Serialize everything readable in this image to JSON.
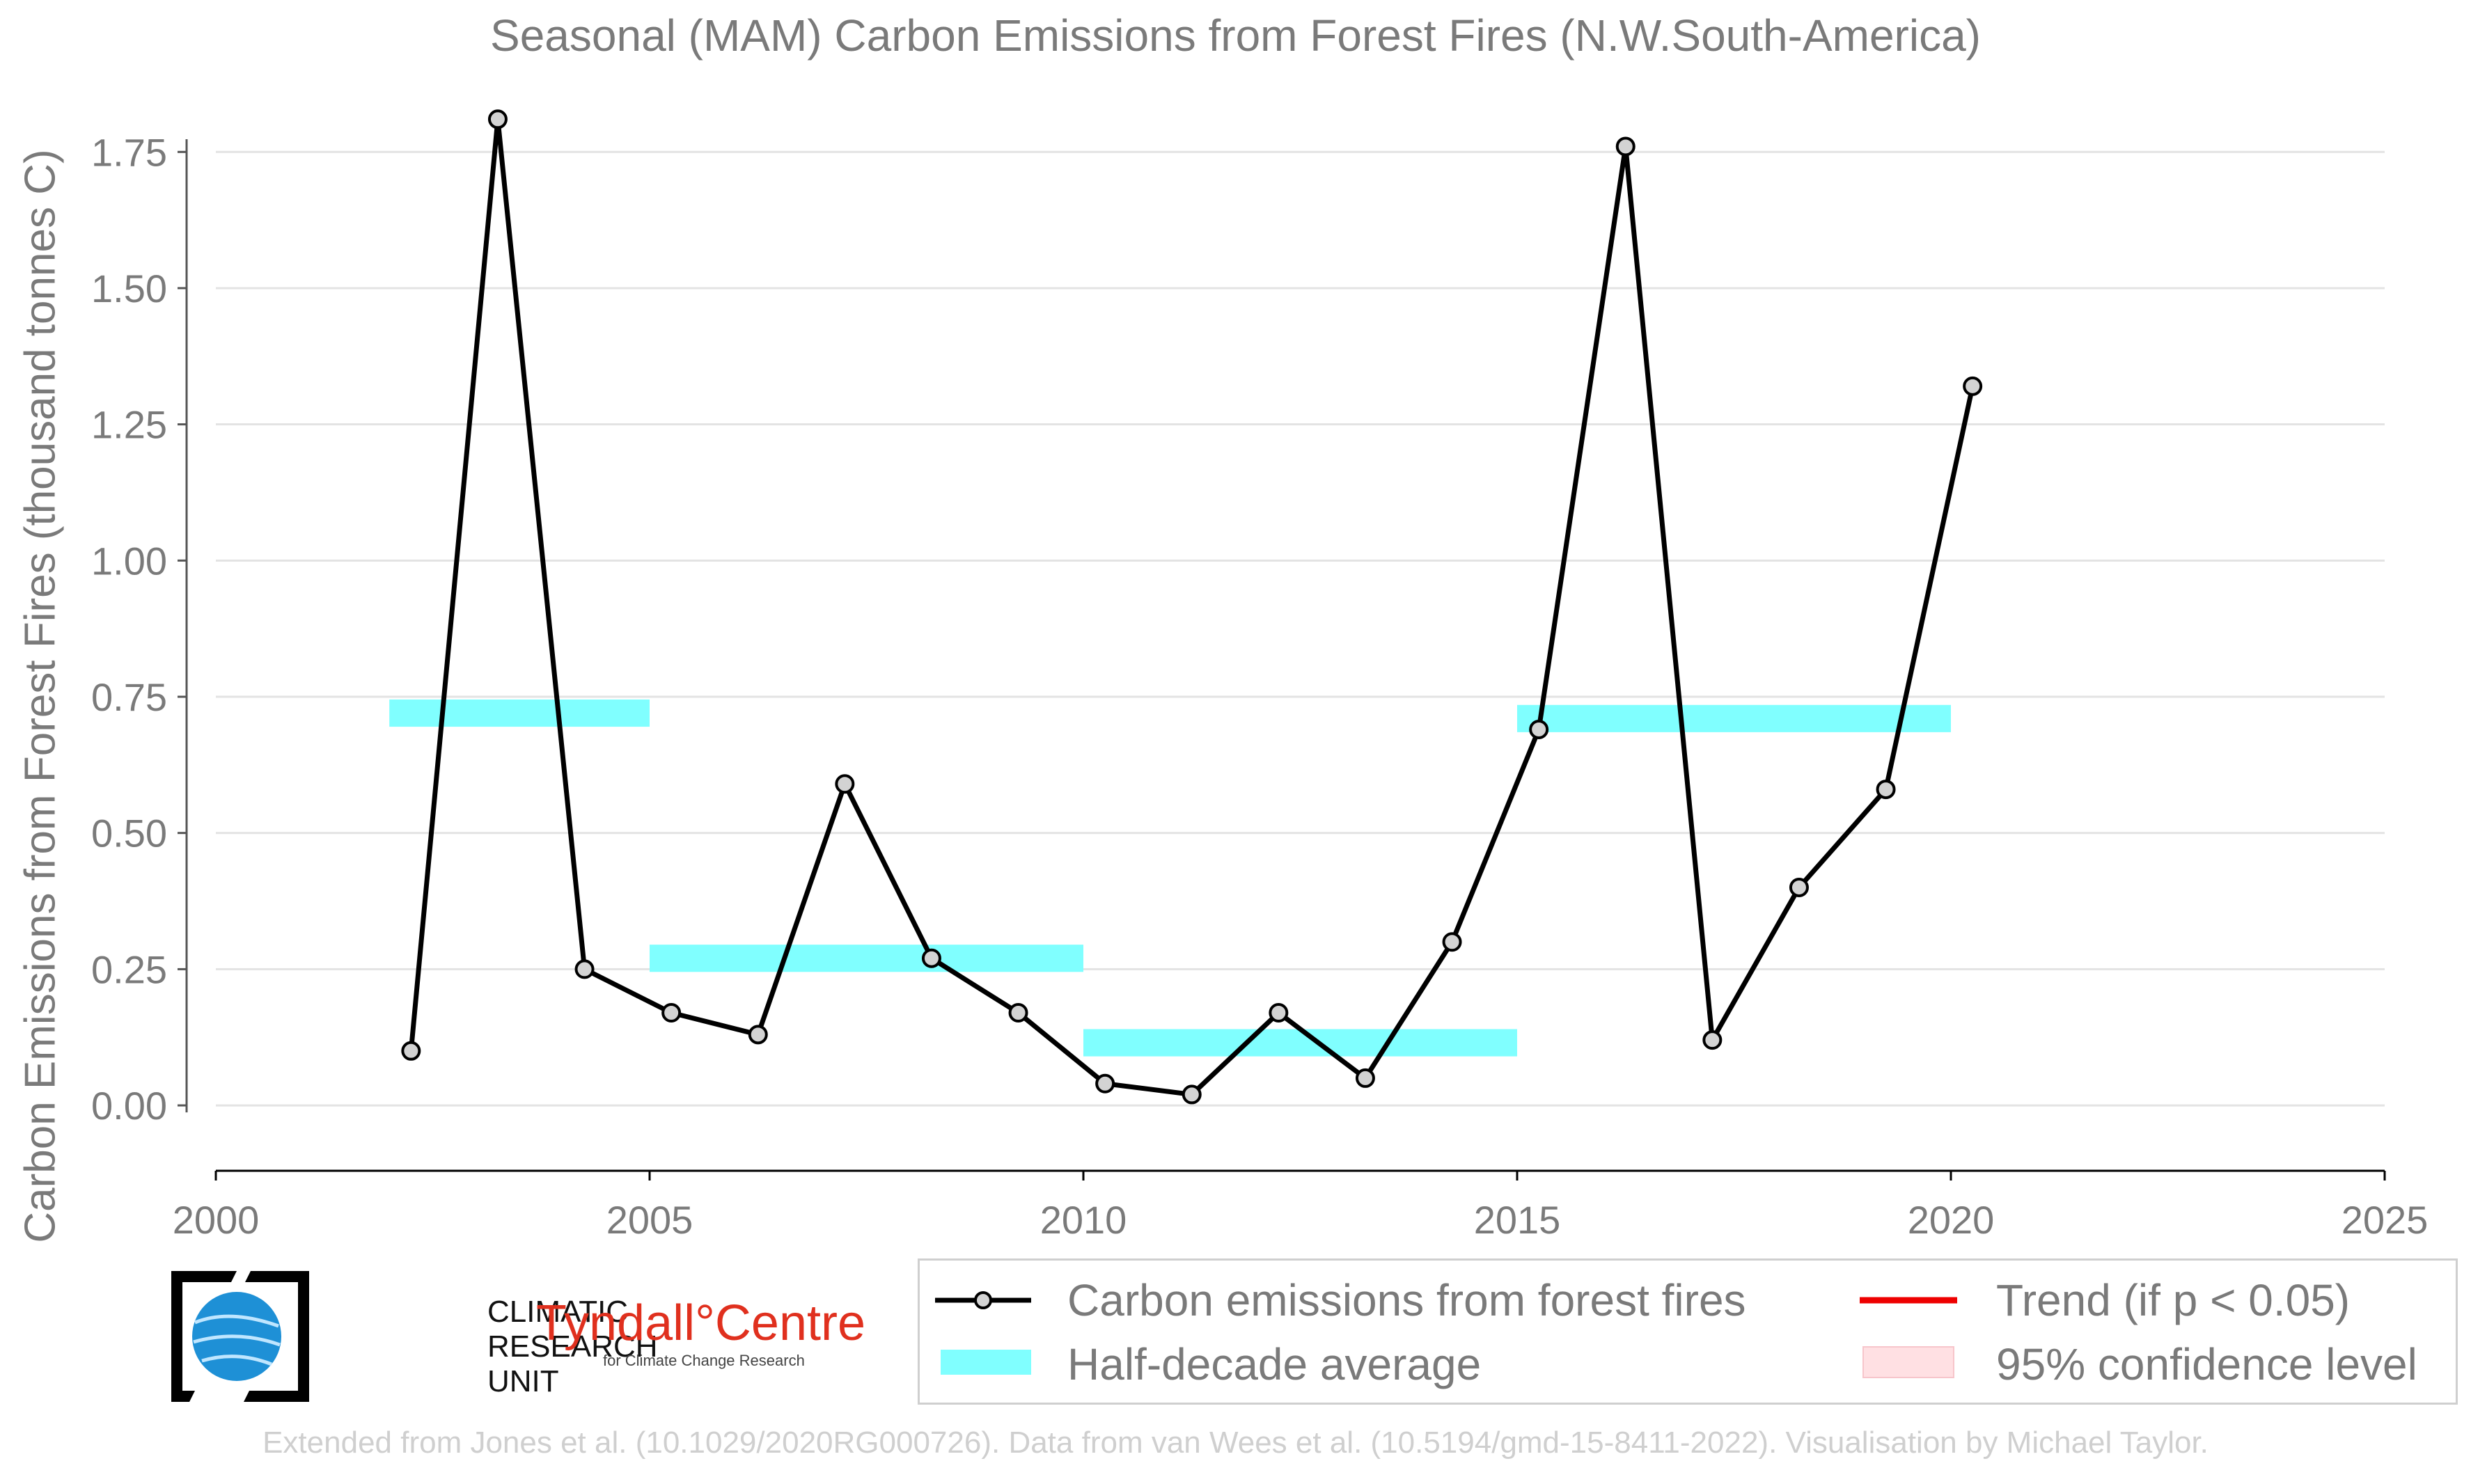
{
  "title": "Seasonal (MAM) Carbon Emissions from Forest Fires (N.W.South-America)",
  "chart_data": {
    "type": "line",
    "ylabel": "Carbon Emissions from Forest Fires (thousand tonnes C)",
    "xlabel": "",
    "xlim": [
      2000,
      2025
    ],
    "ylim": [
      -0.12,
      1.85
    ],
    "x_ticks": [
      "2000",
      "2005",
      "2010",
      "2015",
      "2020",
      "2025"
    ],
    "y_ticks": [
      "0.00",
      "0.25",
      "0.50",
      "0.75",
      "1.00",
      "1.25",
      "1.50",
      "1.75"
    ],
    "grid": true,
    "series": [
      {
        "name": "Carbon emissions from forest fires",
        "color": "#000000",
        "marker_fill": "#d3d3d3",
        "x": [
          2002.25,
          2003.25,
          2004.25,
          2005.25,
          2006.25,
          2007.25,
          2008.25,
          2009.25,
          2010.25,
          2011.25,
          2012.25,
          2013.25,
          2014.25,
          2015.25,
          2016.25,
          2017.25,
          2018.25,
          2019.25,
          2020.25
        ],
        "values": [
          0.1,
          1.81,
          0.25,
          0.17,
          0.13,
          0.59,
          0.27,
          0.17,
          0.04,
          0.02,
          0.17,
          0.05,
          0.3,
          0.69,
          1.76,
          0.12,
          0.4,
          0.58,
          1.32
        ]
      }
    ],
    "half_decade_averages": [
      {
        "start": 2002,
        "end": 2005,
        "value": 0.72
      },
      {
        "start": 2005,
        "end": 2010,
        "value": 0.27
      },
      {
        "start": 2010,
        "end": 2015,
        "value": 0.115
      },
      {
        "start": 2015,
        "end": 2020,
        "value": 0.71
      }
    ],
    "half_decade_color": "#80ffff",
    "legend_position": "bottom-right",
    "legend": [
      {
        "label": "Carbon emissions from forest fires",
        "kind": "line-marker",
        "color": "#000000"
      },
      {
        "label": "Trend (if p < 0.05)",
        "kind": "line",
        "color": "#ee0000"
      },
      {
        "label": "Half-decade average",
        "kind": "band",
        "color": "#80ffff"
      },
      {
        "label": "95% confidence level",
        "kind": "patch",
        "color": "#ffe0e3"
      }
    ]
  },
  "logos": {
    "cru_lines": [
      "CLIMATIC",
      "RESEARCH",
      "UNIT"
    ],
    "tyndall_name": "Tyndall°Centre",
    "tyndall_sub": "for Climate Change Research"
  },
  "footer": "Extended from Jones et al. (10.1029/2020RG000726). Data from van Wees et al. (10.5194/gmd-15-8411-2022). Visualisation by Michael Taylor."
}
